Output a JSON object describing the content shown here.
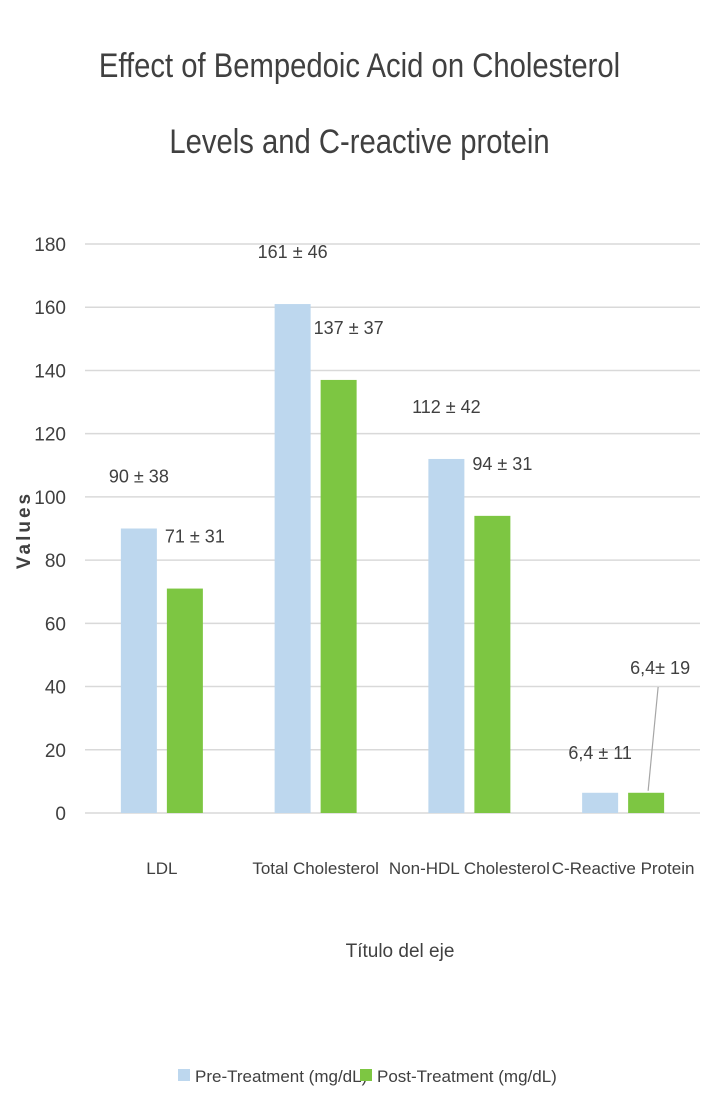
{
  "chart_data": {
    "type": "bar",
    "title": "Effect of Bempedoic Acid on Cholesterol Levels and C-reactive protein",
    "categories": [
      "LDL",
      "Total Cholesterol",
      "Non-HDL Cholesterol",
      "C-Reactive Protein"
    ],
    "series": [
      {
        "name": "Pre-Treatment (mg/dL)",
        "values": [
          90,
          161,
          112,
          6.4
        ],
        "labels": [
          "90 ± 38",
          "161 ± 46",
          "112 ± 42",
          "6,4 ± 11"
        ],
        "color": "#bdd7ee"
      },
      {
        "name": "Post-Treatment (mg/dL)",
        "values": [
          71,
          137,
          94,
          6.4
        ],
        "labels": [
          "71 ± 31",
          "137 ± 37",
          "94 ± 31",
          "6,4± 19"
        ],
        "color": "#7dc642"
      }
    ],
    "xlabel": "Título del eje",
    "ylabel": "Values",
    "ylim": [
      0,
      180
    ],
    "yticks": [
      "0",
      "20",
      "40",
      "60",
      "80",
      "100",
      "120",
      "140",
      "160",
      "180"
    ],
    "grid": true,
    "legend_position": "bottom",
    "gridline_color": "#d9d9d9"
  }
}
